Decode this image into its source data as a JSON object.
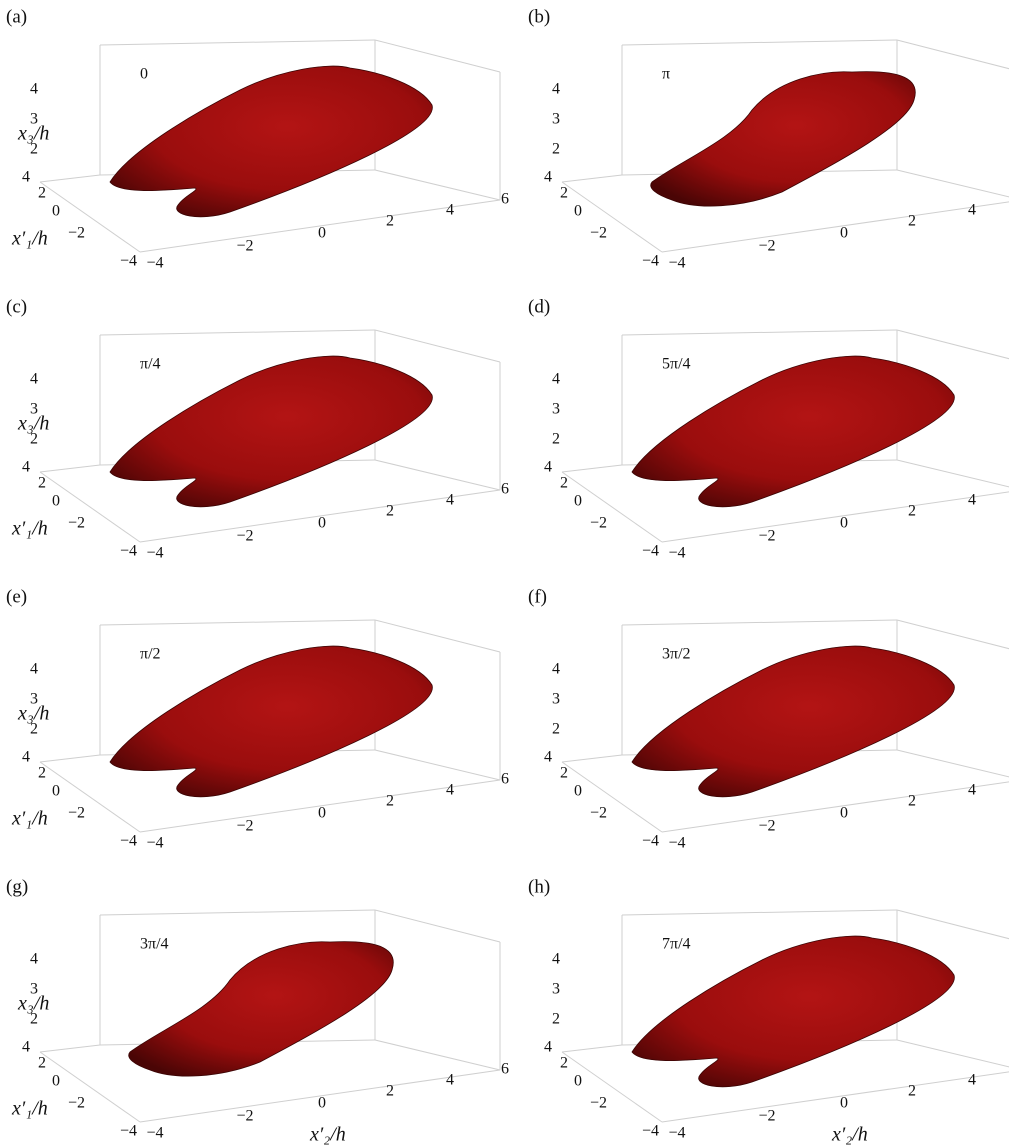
{
  "panels": [
    {
      "label": "(a)",
      "phase": "0"
    },
    {
      "label": "(b)",
      "phase": "π"
    },
    {
      "label": "(c)",
      "phase": "π/4"
    },
    {
      "label": "(d)",
      "phase": "5π/4"
    },
    {
      "label": "(e)",
      "phase": "π/2"
    },
    {
      "label": "(f)",
      "phase": "3π/2"
    },
    {
      "label": "(g)",
      "phase": "3π/4"
    },
    {
      "label": "(h)",
      "phase": "7π/4"
    }
  ],
  "axes": {
    "x3_label": "x₃/h",
    "x3_ticks": [
      "4",
      "3",
      "2"
    ],
    "x1_label": "x′₁/h",
    "x1_ticks": [
      "4",
      "2",
      "0",
      "−2",
      "−4"
    ],
    "x2_label": "x′₂/h",
    "x2_ticks": [
      "−4",
      "−2",
      "0",
      "2",
      "4",
      "6"
    ]
  }
}
